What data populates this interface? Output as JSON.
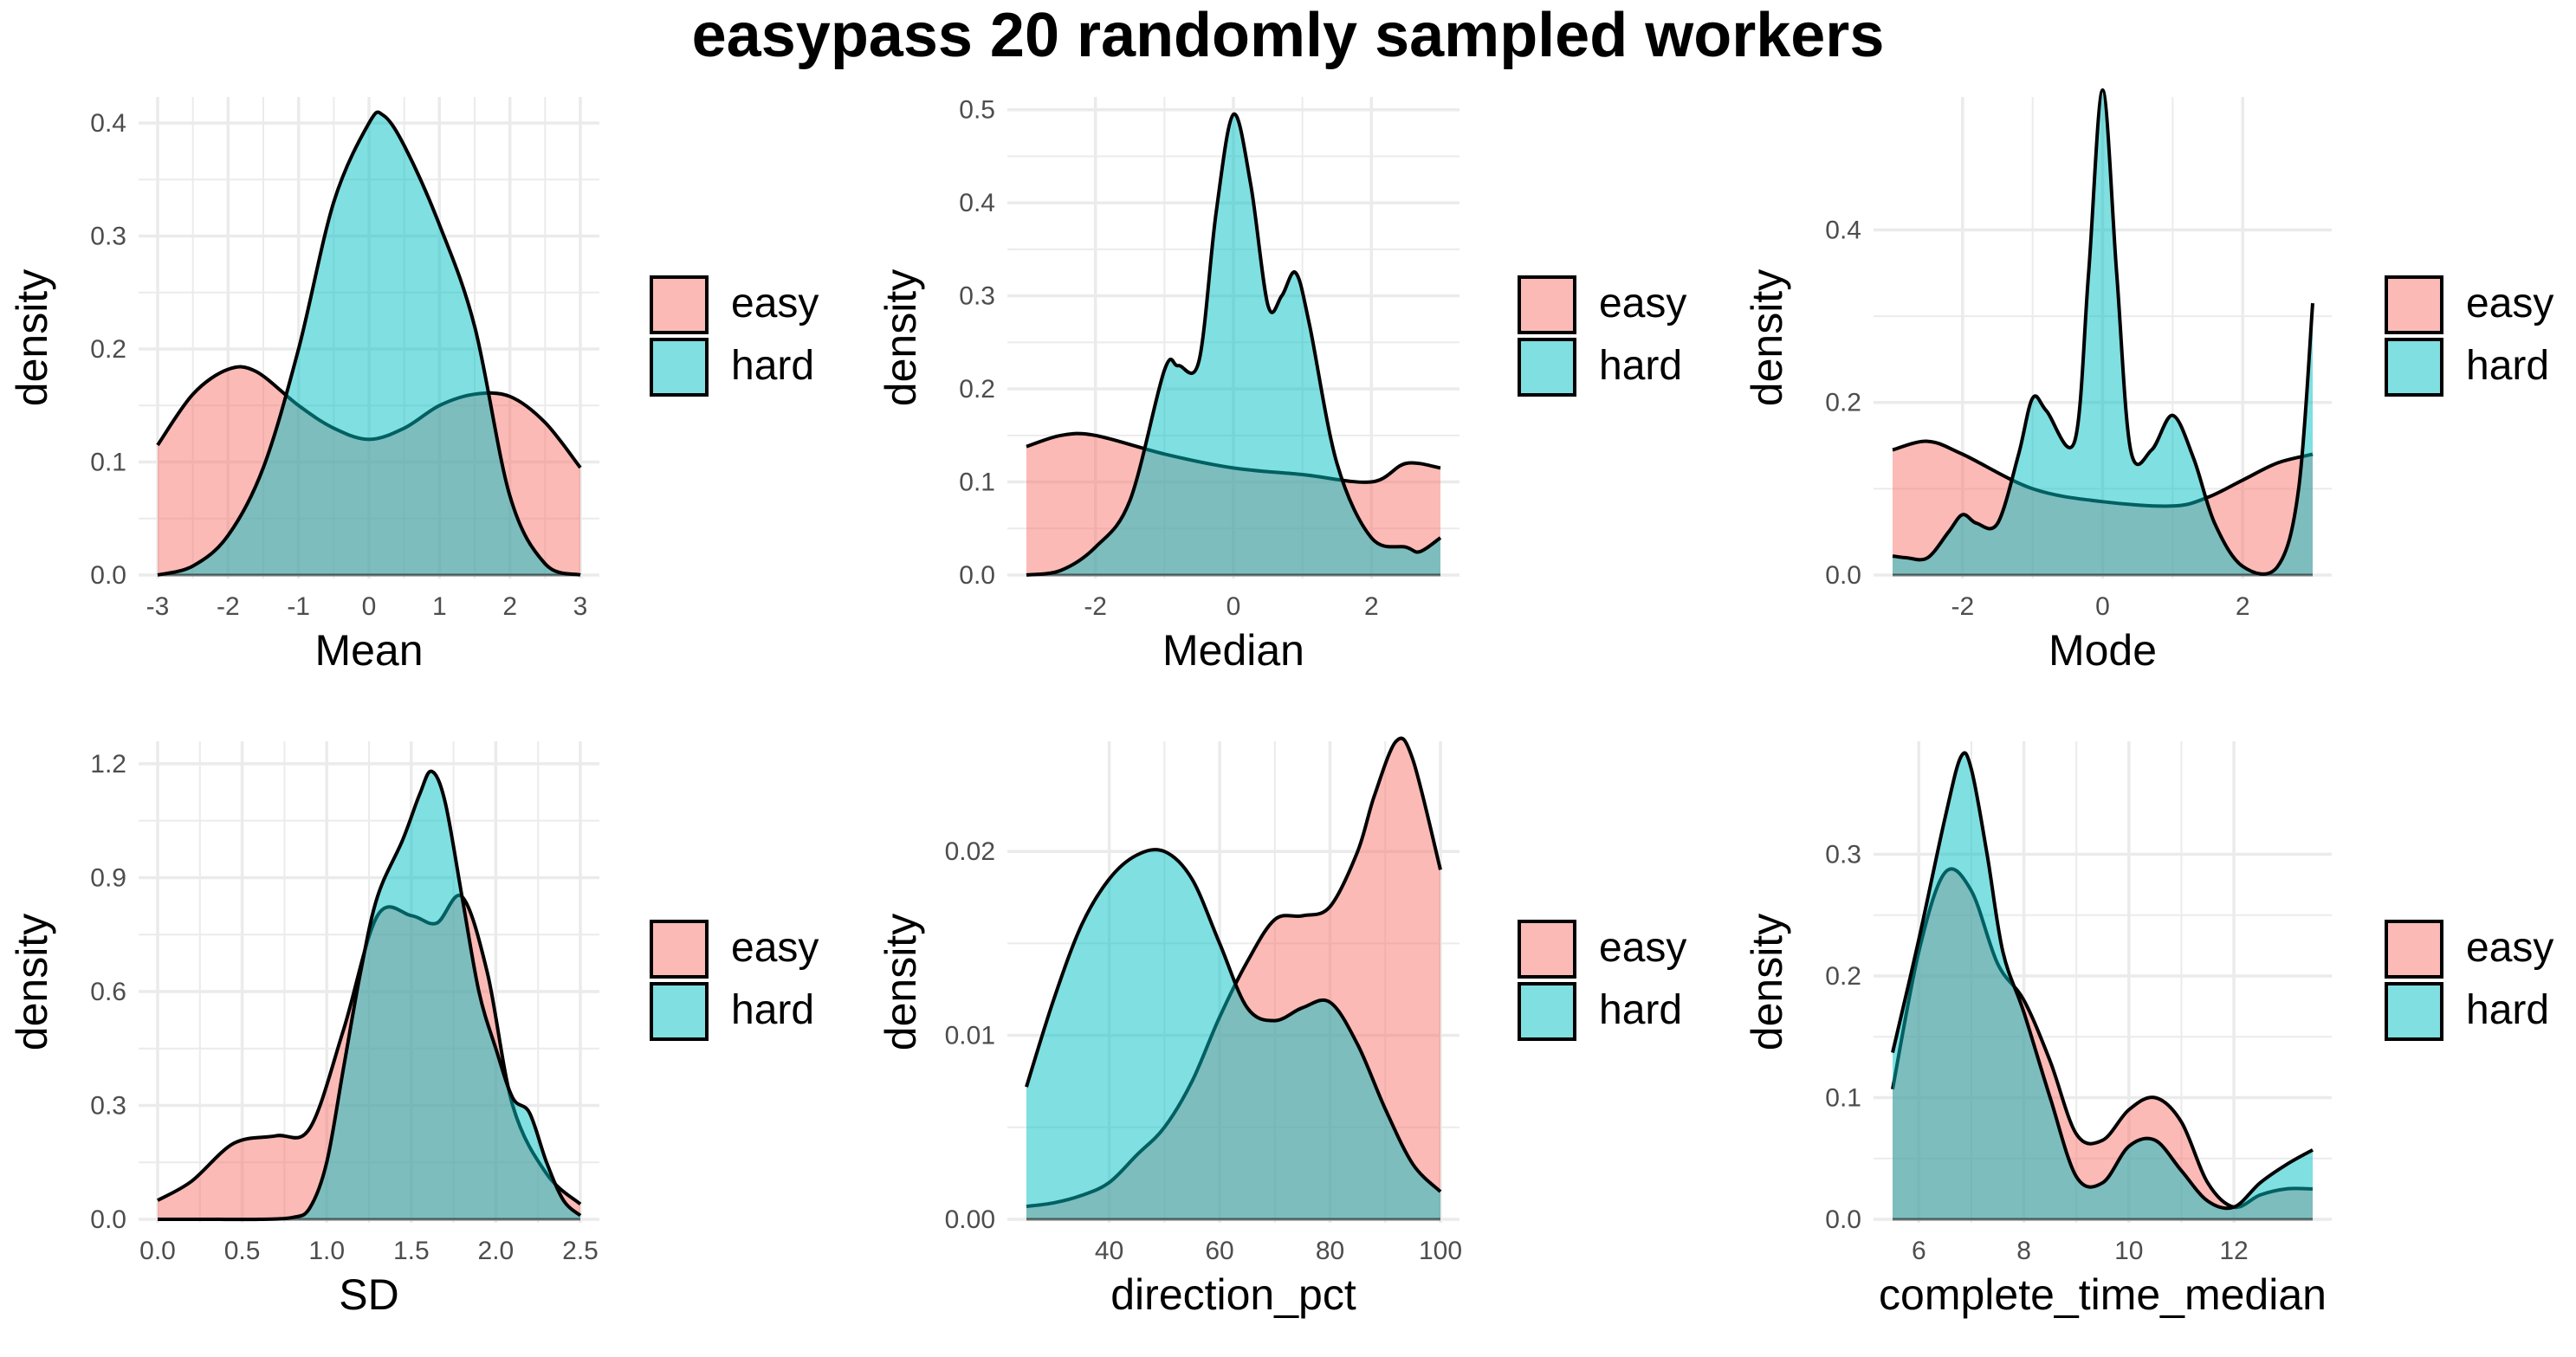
{
  "title": "easypass 20 randomly sampled workers",
  "colors": {
    "easy": "#F8766D",
    "hard": "#00BFC4",
    "line": "#000000",
    "grid": "#EBEBEB",
    "tick": "#4D4D4D"
  },
  "legend": {
    "placement": "right",
    "items": [
      "easy",
      "hard"
    ]
  },
  "chart_data": [
    {
      "type": "area",
      "xlabel": "Mean",
      "ylabel": "density",
      "xlim": [
        -3,
        3
      ],
      "ylim": [
        0,
        0.42
      ],
      "x_ticks": [
        "-3",
        "-2",
        "-1",
        "0",
        "1",
        "2",
        "3"
      ],
      "x_tick_values": [
        -3,
        -2,
        -1,
        0,
        1,
        2,
        3
      ],
      "y_ticks": [
        "0.0",
        "0.1",
        "0.2",
        "0.3",
        "0.4"
      ],
      "y_tick_values": [
        0,
        0.1,
        0.2,
        0.3,
        0.4
      ],
      "grid": true,
      "series": [
        {
          "name": "easy",
          "x": [
            -3,
            -2.5,
            -2,
            -1.6,
            -1,
            -0.5,
            0,
            0.5,
            1,
            1.5,
            2,
            2.5,
            3
          ],
          "y": [
            0.115,
            0.16,
            0.182,
            0.18,
            0.15,
            0.13,
            0.12,
            0.13,
            0.15,
            0.16,
            0.158,
            0.135,
            0.095
          ]
        },
        {
          "name": "hard",
          "x": [
            -3,
            -2.5,
            -2,
            -1.5,
            -1,
            -0.5,
            0,
            0.2,
            0.5,
            1,
            1.5,
            2,
            2.5,
            3
          ],
          "y": [
            0,
            0.008,
            0.035,
            0.095,
            0.2,
            0.33,
            0.4,
            0.407,
            0.38,
            0.31,
            0.22,
            0.07,
            0.01,
            0
          ]
        }
      ]
    },
    {
      "type": "area",
      "xlabel": "Median",
      "ylabel": "density",
      "xlim": [
        -3,
        3
      ],
      "ylim": [
        0,
        0.51
      ],
      "x_ticks": [
        "-2",
        "0",
        "2"
      ],
      "x_tick_values": [
        -2,
        0,
        2
      ],
      "y_ticks": [
        "0.0",
        "0.1",
        "0.2",
        "0.3",
        "0.4",
        "0.5"
      ],
      "y_tick_values": [
        0,
        0.1,
        0.2,
        0.3,
        0.4,
        0.5
      ],
      "grid": true,
      "series": [
        {
          "name": "easy",
          "x": [
            -3,
            -2.5,
            -2,
            -1,
            0,
            1,
            2,
            2.5,
            3
          ],
          "y": [
            0.138,
            0.15,
            0.15,
            0.13,
            0.115,
            0.108,
            0.1,
            0.12,
            0.115
          ]
        },
        {
          "name": "hard",
          "x": [
            -3,
            -2.5,
            -2,
            -1.5,
            -1,
            -0.8,
            -0.5,
            -0.25,
            0,
            0.25,
            0.5,
            0.7,
            0.9,
            1.1,
            1.5,
            2,
            2.5,
            2.7,
            3
          ],
          "y": [
            0,
            0.005,
            0.03,
            0.08,
            0.22,
            0.225,
            0.23,
            0.39,
            0.495,
            0.42,
            0.29,
            0.3,
            0.325,
            0.27,
            0.12,
            0.04,
            0.03,
            0.025,
            0.04
          ]
        }
      ]
    },
    {
      "type": "area",
      "xlabel": "Mode",
      "ylabel": "density",
      "xlim": [
        -3,
        3
      ],
      "ylim": [
        0,
        0.55
      ],
      "x_ticks": [
        "-2",
        "0",
        "2"
      ],
      "x_tick_values": [
        -2,
        0,
        2
      ],
      "y_ticks": [
        "0.0",
        "0.2",
        "0.4"
      ],
      "y_tick_values": [
        0,
        0.2,
        0.4
      ],
      "grid": true,
      "series": [
        {
          "name": "easy",
          "x": [
            -3,
            -2.5,
            -2,
            -1,
            0,
            1,
            1.5,
            2,
            2.5,
            3
          ],
          "y": [
            0.145,
            0.155,
            0.14,
            0.1,
            0.085,
            0.08,
            0.09,
            0.11,
            0.13,
            0.14
          ]
        },
        {
          "name": "hard",
          "x": [
            -3,
            -2.8,
            -2.5,
            -2.2,
            -2,
            -1.8,
            -1.5,
            -1.2,
            -1,
            -0.8,
            -0.4,
            -0.2,
            0,
            0.2,
            0.4,
            0.7,
            1,
            1.3,
            1.6,
            2,
            2.5,
            2.8,
            3
          ],
          "y": [
            0.022,
            0.02,
            0.02,
            0.05,
            0.07,
            0.06,
            0.06,
            0.14,
            0.205,
            0.19,
            0.155,
            0.35,
            0.562,
            0.35,
            0.145,
            0.145,
            0.185,
            0.135,
            0.06,
            0.01,
            0.01,
            0.1,
            0.315
          ]
        }
      ]
    },
    {
      "type": "area",
      "xlabel": "SD",
      "ylabel": "density",
      "xlim": [
        0,
        2.5
      ],
      "ylim": [
        0,
        1.25
      ],
      "x_ticks": [
        "0.0",
        "0.5",
        "1.0",
        "1.5",
        "2.0",
        "2.5"
      ],
      "x_tick_values": [
        0,
        0.5,
        1,
        1.5,
        2,
        2.5
      ],
      "y_ticks": [
        "0.0",
        "0.3",
        "0.6",
        "0.9",
        "1.2"
      ],
      "y_tick_values": [
        0,
        0.3,
        0.6,
        0.9,
        1.2
      ],
      "grid": true,
      "series": [
        {
          "name": "easy",
          "x": [
            0,
            0.2,
            0.45,
            0.7,
            0.9,
            1.1,
            1.3,
            1.5,
            1.65,
            1.8,
            1.95,
            2.1,
            2.3,
            2.5
          ],
          "y": [
            0.05,
            0.1,
            0.2,
            0.22,
            0.24,
            0.5,
            0.8,
            0.8,
            0.78,
            0.85,
            0.65,
            0.3,
            0.12,
            0.04
          ]
        },
        {
          "name": "hard",
          "x": [
            0,
            0.3,
            0.6,
            0.8,
            0.9,
            1.0,
            1.1,
            1.2,
            1.3,
            1.45,
            1.55,
            1.62,
            1.7,
            1.8,
            1.9,
            2.0,
            2.1,
            2.2,
            2.3,
            2.4,
            2.5
          ],
          "y": [
            0,
            0,
            0,
            0.005,
            0.03,
            0.15,
            0.4,
            0.65,
            0.85,
            1.0,
            1.12,
            1.18,
            1.1,
            0.85,
            0.6,
            0.45,
            0.32,
            0.28,
            0.15,
            0.05,
            0.01
          ]
        }
      ]
    },
    {
      "type": "area",
      "xlabel": "direction_pct",
      "ylabel": "density",
      "xlim": [
        25,
        100
      ],
      "ylim": [
        0,
        0.0258
      ],
      "x_ticks": [
        "40",
        "60",
        "80",
        "100"
      ],
      "x_tick_values": [
        40,
        60,
        80,
        100
      ],
      "y_ticks": [
        "0.00",
        "0.01",
        "0.02"
      ],
      "y_tick_values": [
        0,
        0.01,
        0.02
      ],
      "grid": true,
      "series": [
        {
          "name": "easy",
          "x": [
            25,
            30,
            35,
            40,
            45,
            50,
            55,
            60,
            65,
            70,
            75,
            80,
            85,
            88,
            92,
            95,
            100
          ],
          "y": [
            0.0007,
            0.0009,
            0.0013,
            0.002,
            0.0035,
            0.005,
            0.0075,
            0.011,
            0.014,
            0.0163,
            0.0165,
            0.017,
            0.02,
            0.023,
            0.026,
            0.025,
            0.019
          ]
        },
        {
          "name": "hard",
          "x": [
            25,
            30,
            35,
            40,
            45,
            50,
            55,
            60,
            65,
            70,
            75,
            80,
            85,
            90,
            95,
            100
          ],
          "y": [
            0.0072,
            0.012,
            0.016,
            0.0185,
            0.0198,
            0.02,
            0.0185,
            0.015,
            0.0115,
            0.0108,
            0.0115,
            0.0118,
            0.0095,
            0.006,
            0.003,
            0.0015
          ]
        }
      ]
    },
    {
      "type": "area",
      "xlabel": "complete_time_median",
      "ylabel": "density",
      "xlim": [
        5.5,
        13.5
      ],
      "ylim": [
        0,
        0.39
      ],
      "x_ticks": [
        "6",
        "8",
        "10",
        "12"
      ],
      "x_tick_values": [
        6,
        8,
        10,
        12
      ],
      "y_ticks": [
        "0.0",
        "0.1",
        "0.2",
        "0.3"
      ],
      "y_tick_values": [
        0,
        0.1,
        0.2,
        0.3
      ],
      "grid": true,
      "series": [
        {
          "name": "easy",
          "x": [
            5.5,
            6,
            6.5,
            7,
            7.5,
            8,
            8.5,
            9,
            9.5,
            10,
            10.5,
            11,
            11.5,
            12,
            12.5,
            13,
            13.5
          ],
          "y": [
            0.107,
            0.22,
            0.285,
            0.27,
            0.21,
            0.18,
            0.13,
            0.07,
            0.065,
            0.09,
            0.1,
            0.08,
            0.03,
            0.01,
            0.02,
            0.025,
            0.025
          ]
        },
        {
          "name": "hard",
          "x": [
            5.5,
            6,
            6.5,
            6.8,
            7,
            7.3,
            7.6,
            8,
            8.5,
            9,
            9.5,
            10,
            10.5,
            11,
            11.5,
            12,
            12.5,
            13,
            13.5
          ],
          "y": [
            0.137,
            0.23,
            0.33,
            0.38,
            0.37,
            0.3,
            0.22,
            0.17,
            0.1,
            0.035,
            0.03,
            0.06,
            0.065,
            0.04,
            0.015,
            0.01,
            0.03,
            0.045,
            0.057
          ]
        }
      ]
    }
  ]
}
